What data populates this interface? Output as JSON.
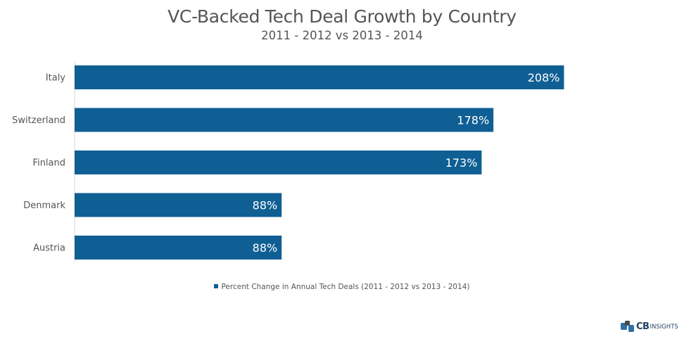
{
  "chart_data": {
    "type": "bar",
    "orientation": "horizontal",
    "title": "VC-Backed Tech Deal Growth by Country",
    "subtitle": "2011 - 2012 vs 2013 - 2014",
    "categories": [
      "Italy",
      "Switzerland",
      "Finland",
      "Denmark",
      "Austria"
    ],
    "series": [
      {
        "name": "Percent Change in Annual Tech Deals (2011 - 2012 vs 2013 - 2014)",
        "values": [
          208,
          178,
          173,
          88,
          88
        ],
        "labels": [
          "208%",
          "178%",
          "173%",
          "88%",
          "88%"
        ]
      }
    ],
    "xlim": [
      0,
      259
    ],
    "bar_color": "#0f5f94",
    "label_color": "#ffffff",
    "grid": false,
    "legend": "bottom-center"
  },
  "logo": {
    "brand": "CB",
    "suffix": "INSIGHTS",
    "colors": [
      "#2f6fa8",
      "#4a4a4a"
    ]
  }
}
